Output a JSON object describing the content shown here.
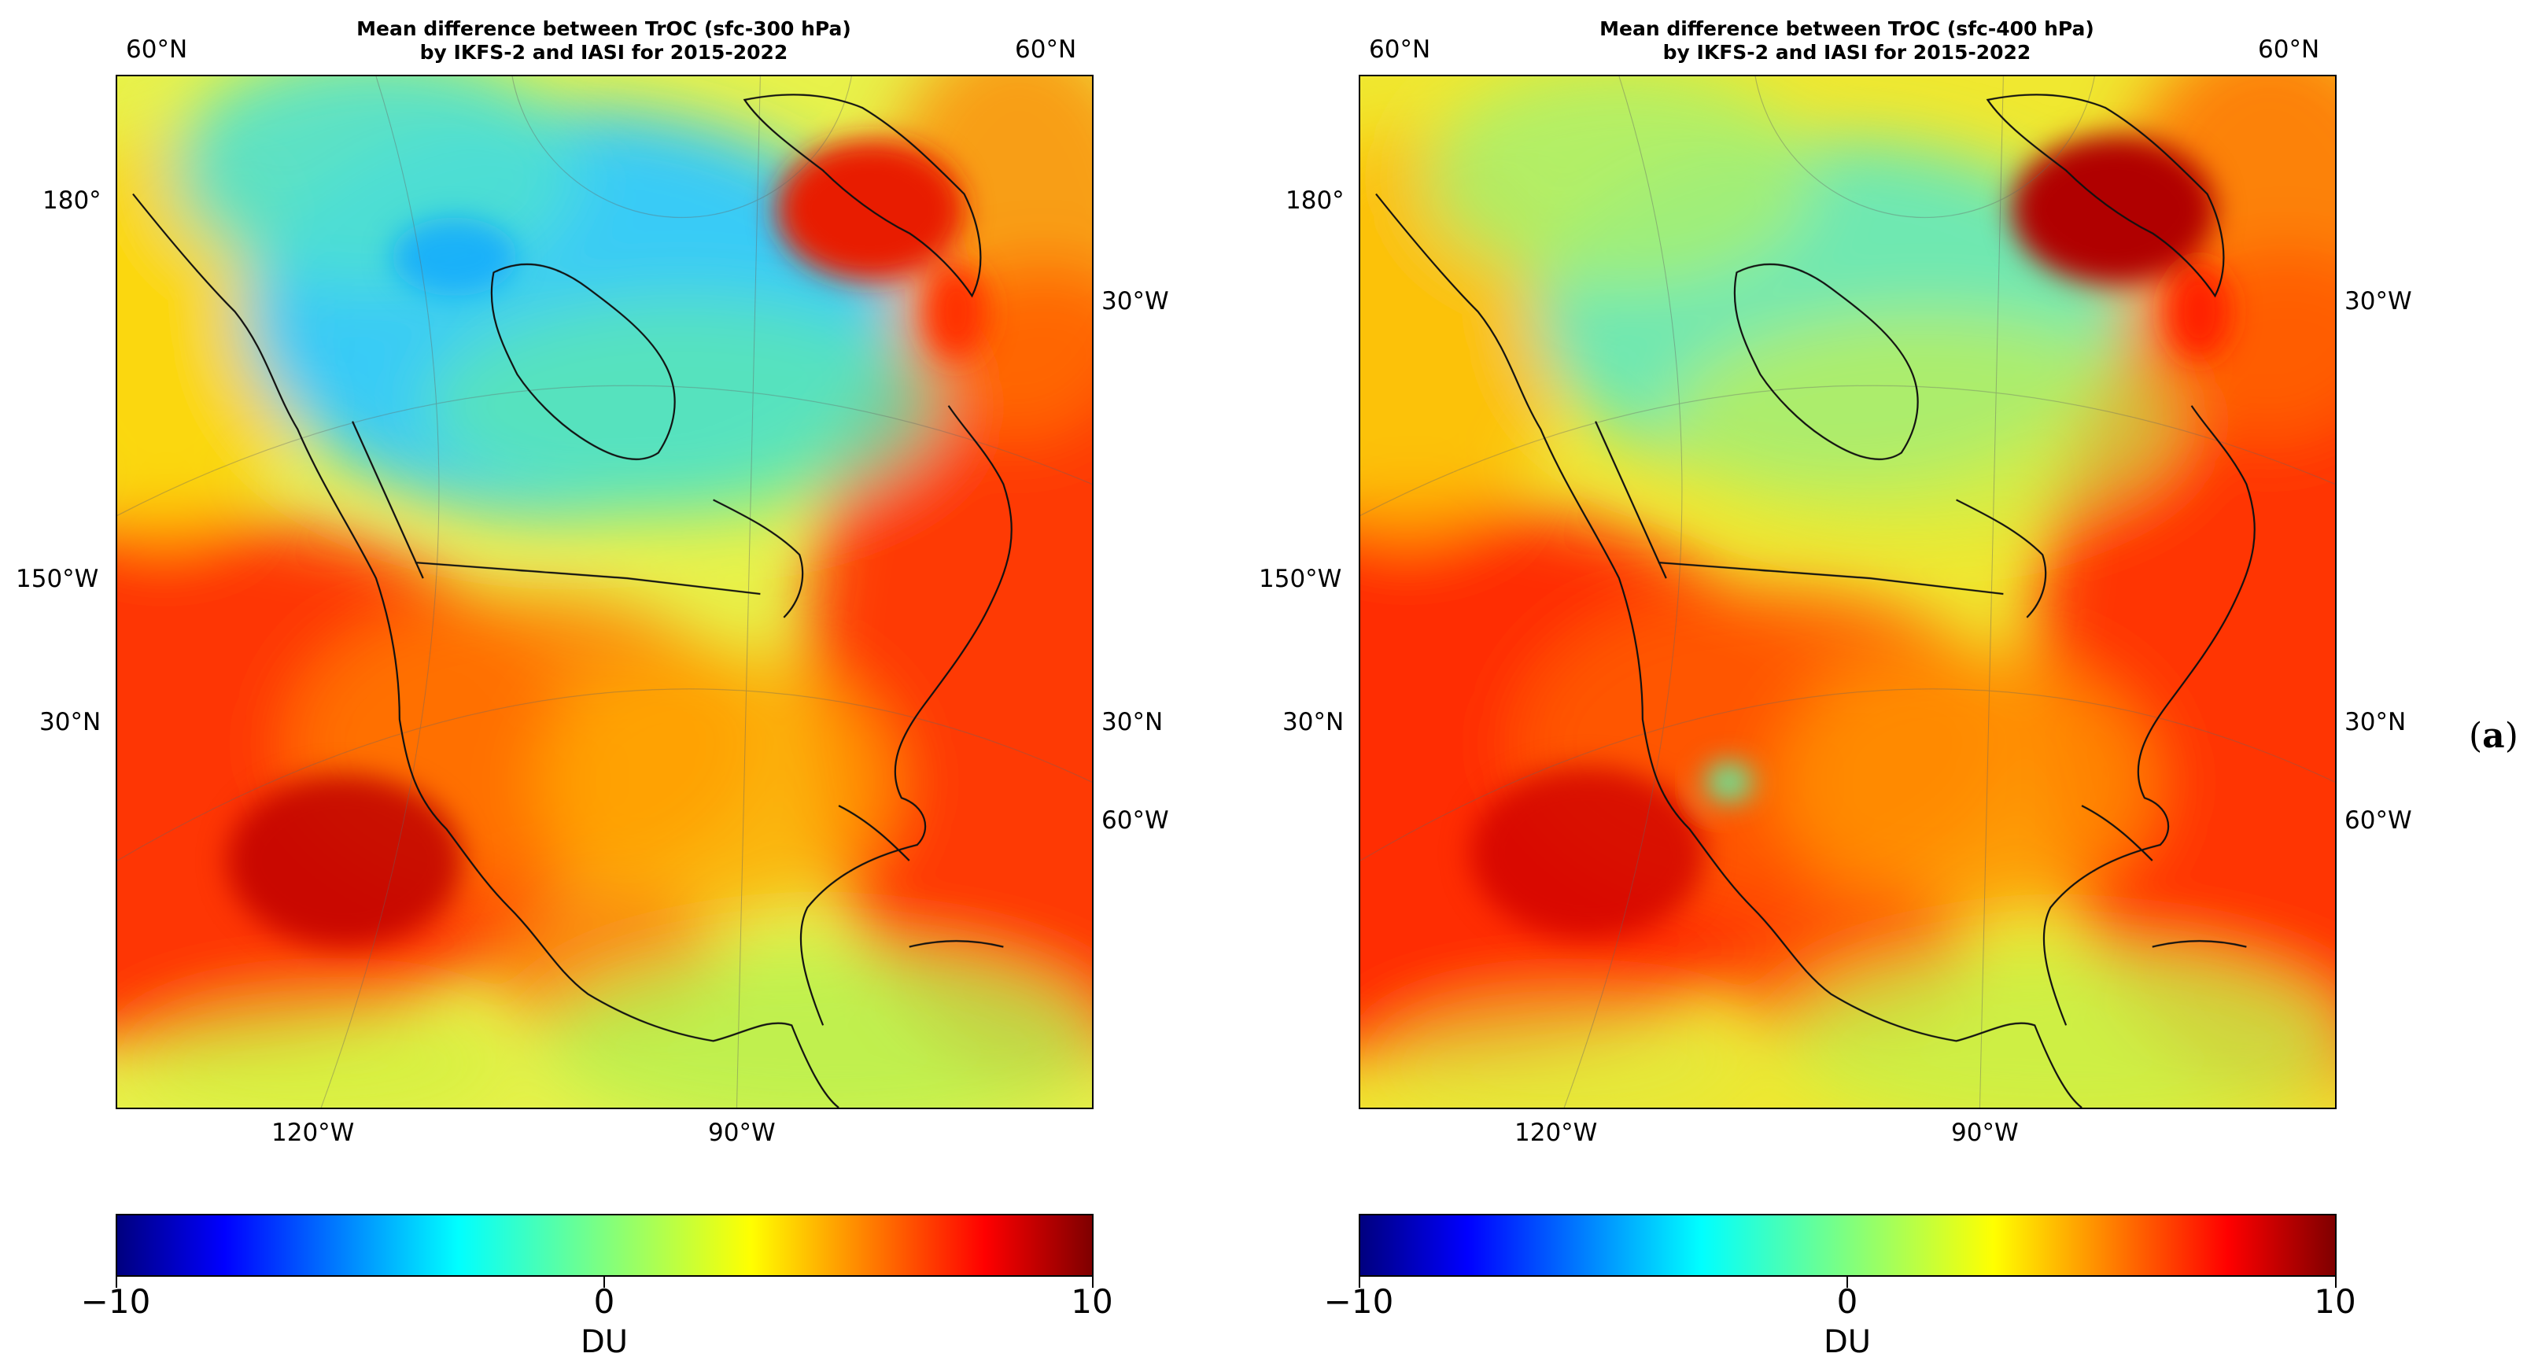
{
  "colormap": {
    "name": "jet",
    "stops": [
      "#00007f",
      "#0000ff",
      "#007fff",
      "#00ffff",
      "#7fff7f",
      "#ffff00",
      "#ff7f00",
      "#ff0000",
      "#7f0000"
    ],
    "vmin": -10,
    "vmax": 10,
    "ticks": [
      "−10",
      "0",
      "10"
    ],
    "unit": "DU"
  },
  "panels": [
    {
      "title_line1": "Mean difference between TrOC (sfc-300 hPa)",
      "title_line2": "by IKFS-2 and IASI for 2015-2022",
      "labels": {
        "top_left": "60°N",
        "top_right": "60°N",
        "left_upper": "180°",
        "left_mid": "150°W",
        "left_lower": "30°N",
        "right_upper": "30°W",
        "right_mid": "30°N",
        "right_lower": "60°W",
        "bottom_left": "120°W",
        "bottom_right": "90°W"
      },
      "colorbar": {
        "min_label": "−10",
        "mid_label": "0",
        "max_label": "10",
        "unit": "DU"
      }
    },
    {
      "title_line1": "Mean difference between TrOC (sfc-400 hPa)",
      "title_line2": "by IKFS-2 and IASI for 2015-2022",
      "labels": {
        "top_left": "60°N",
        "top_right": "60°N",
        "left_upper": "180°",
        "left_mid": "150°W",
        "left_lower": "30°N",
        "right_upper": "30°W",
        "right_mid": "30°N",
        "right_lower": "60°W",
        "bottom_left": "120°W",
        "bottom_right": "90°W"
      },
      "colorbar": {
        "min_label": "−10",
        "mid_label": "0",
        "max_label": "10",
        "unit": "DU"
      }
    }
  ],
  "panel_letter": "(a)"
}
